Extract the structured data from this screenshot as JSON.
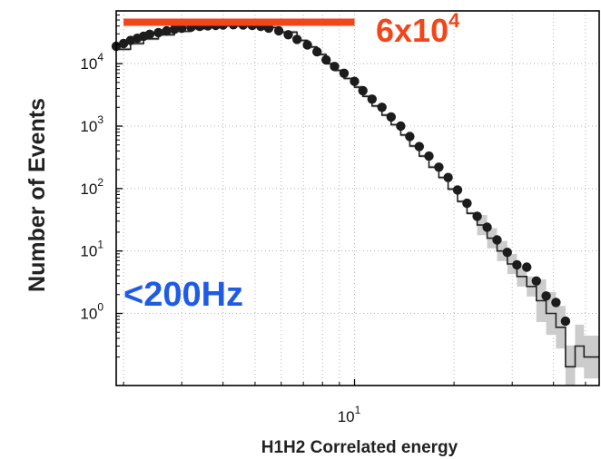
{
  "chart_data": {
    "type": "scatter",
    "xlabel": "H1H2 Correlated energy",
    "ylabel": "Number of Events",
    "x_scale": "log",
    "y_scale": "log",
    "xlim": [
      1.9,
      55
    ],
    "ylim": [
      0.07,
      70000
    ],
    "x_ticks": [
      {
        "value": 10,
        "base": "10",
        "exp": "1"
      }
    ],
    "y_ticks": [
      {
        "value": 1,
        "base": "10",
        "exp": "0"
      },
      {
        "value": 10,
        "base": "10",
        "exp": "1"
      },
      {
        "value": 100,
        "base": "10",
        "exp": "2"
      },
      {
        "value": 1000,
        "base": "10",
        "exp": "3"
      },
      {
        "value": 10000,
        "base": "10",
        "exp": "4"
      }
    ],
    "grid": true,
    "annotations": {
      "peak_label": {
        "text": "6x10",
        "exp": "4",
        "color": "#f2461a",
        "y": 46000,
        "x_from": 1.95,
        "x_to": 10
      },
      "band_label": {
        "text": "<200Hz",
        "color": "#1f5ce6"
      }
    },
    "series": [
      {
        "style": "points",
        "color": "#1c1c1c",
        "points": [
          [
            1.9,
            19000
          ],
          [
            2.0,
            21000
          ],
          [
            2.1,
            23500
          ],
          [
            2.2,
            25500
          ],
          [
            2.3,
            27500
          ],
          [
            2.4,
            29500
          ],
          [
            2.55,
            31500
          ],
          [
            2.7,
            33500
          ],
          [
            2.85,
            35500
          ],
          [
            3.0,
            37000
          ],
          [
            3.2,
            38500
          ],
          [
            3.4,
            39500
          ],
          [
            3.6,
            40500
          ],
          [
            3.8,
            41000
          ],
          [
            4.0,
            41500
          ],
          [
            4.3,
            42000
          ],
          [
            4.6,
            41500
          ],
          [
            4.9,
            41000
          ],
          [
            5.2,
            39500
          ],
          [
            5.5,
            37000
          ],
          [
            5.9,
            33500
          ],
          [
            6.3,
            29000
          ],
          [
            6.7,
            24500
          ],
          [
            7.2,
            20000
          ],
          [
            7.7,
            15500
          ],
          [
            8.2,
            11500
          ],
          [
            8.7,
            9000
          ],
          [
            9.3,
            7000
          ],
          [
            10.0,
            5200
          ],
          [
            10.6,
            3700
          ],
          [
            11.3,
            2700
          ],
          [
            12.1,
            2000
          ],
          [
            12.9,
            1400
          ],
          [
            13.8,
            1000
          ],
          [
            14.7,
            680
          ],
          [
            15.7,
            470
          ],
          [
            16.8,
            330
          ],
          [
            18.0,
            220
          ],
          [
            19.2,
            150
          ],
          [
            20.5,
            95
          ],
          [
            21.9,
            58
          ],
          [
            23.5,
            36
          ],
          [
            25.2,
            24
          ],
          [
            27.0,
            15
          ],
          [
            29.0,
            9.5
          ],
          [
            31.0,
            6.0
          ],
          [
            33.2,
            5.5
          ],
          [
            35.5,
            3.3
          ],
          [
            38.0,
            1.9
          ],
          [
            40.7,
            1.5
          ],
          [
            43.5,
            0.75
          ]
        ]
      },
      {
        "style": "step",
        "color": "#222222",
        "band_color": "#cccccc",
        "points": [
          [
            1.9,
            17000
          ],
          [
            2.1,
            21000
          ],
          [
            2.3,
            25000
          ],
          [
            2.55,
            29000
          ],
          [
            2.85,
            33000
          ],
          [
            3.2,
            36500
          ],
          [
            3.6,
            39000
          ],
          [
            4.0,
            40500
          ],
          [
            4.6,
            40500
          ],
          [
            5.2,
            38000
          ],
          [
            5.9,
            32000
          ],
          [
            6.7,
            23500
          ],
          [
            7.2,
            18500
          ],
          [
            7.7,
            14000
          ],
          [
            8.2,
            10000
          ],
          [
            8.7,
            7800
          ],
          [
            9.3,
            5800
          ],
          [
            10.0,
            4200
          ],
          [
            10.6,
            3000
          ],
          [
            11.3,
            2100
          ],
          [
            12.1,
            1500
          ],
          [
            12.9,
            1050
          ],
          [
            13.8,
            720
          ],
          [
            14.7,
            480
          ],
          [
            15.7,
            330
          ],
          [
            16.8,
            220
          ],
          [
            18.0,
            150
          ],
          [
            19.2,
            98
          ],
          [
            20.5,
            62
          ],
          [
            21.9,
            40
          ],
          [
            23.5,
            26
          ],
          [
            25.2,
            16
          ],
          [
            27.0,
            10
          ],
          [
            29.0,
            6.2
          ],
          [
            31.0,
            3.9
          ],
          [
            33.2,
            2.7
          ],
          [
            35.5,
            1.6
          ],
          [
            38.0,
            1.0
          ],
          [
            40.7,
            0.6
          ],
          [
            43.5,
            0.14
          ],
          [
            46.5,
            0.3
          ],
          [
            49.5,
            0.2
          ],
          [
            55,
            0.2
          ]
        ]
      }
    ]
  }
}
